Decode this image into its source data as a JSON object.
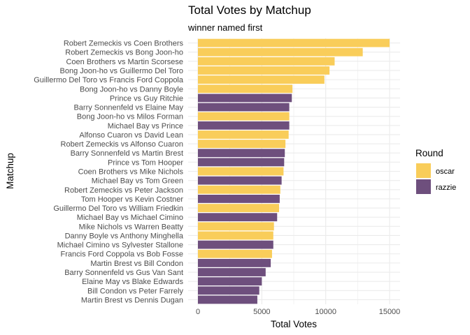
{
  "chart_data": {
    "type": "bar",
    "orientation": "horizontal",
    "title": "Total Votes by Matchup",
    "subtitle": "winner named first",
    "xlabel": "Total Votes",
    "ylabel": "Matchup",
    "xlim": [
      0,
      16000
    ],
    "x_ticks": [
      0,
      5000,
      10000,
      15000
    ],
    "x_tick_labels": [
      "0",
      "5000",
      "10000",
      "15000"
    ],
    "grid": true,
    "legend": {
      "title": "Round",
      "position": "right",
      "entries": [
        {
          "label": "oscar",
          "color": "#f9cd5a"
        },
        {
          "label": "razzie",
          "color": "#6e4f7d"
        }
      ]
    },
    "bars": [
      {
        "label": "Robert Zemeckis vs Coen Brothers",
        "value": 15000,
        "round": "oscar"
      },
      {
        "label": "Robert Zemeckis vs Bong Joon-ho",
        "value": 12900,
        "round": "oscar"
      },
      {
        "label": "Coen Brothers vs Martin Scorsese",
        "value": 10700,
        "round": "oscar"
      },
      {
        "label": "Bong Joon-ho vs Guillermo Del Toro",
        "value": 10300,
        "round": "oscar"
      },
      {
        "label": "Guillermo Del Toro vs Francis Ford Coppola",
        "value": 9900,
        "round": "oscar"
      },
      {
        "label": "Bong Joon-ho vs Danny Boyle",
        "value": 7400,
        "round": "oscar"
      },
      {
        "label": "Prince vs Guy Ritchie",
        "value": 7350,
        "round": "razzie"
      },
      {
        "label": "Barry Sonnenfeld vs Elaine May",
        "value": 7150,
        "round": "razzie"
      },
      {
        "label": "Bong Joon-ho vs Milos Forman",
        "value": 7150,
        "round": "oscar"
      },
      {
        "label": "Michael Bay vs Prince",
        "value": 7150,
        "round": "razzie"
      },
      {
        "label": "Alfonso Cuaron vs David Lean",
        "value": 7100,
        "round": "oscar"
      },
      {
        "label": "Robert Zemeckis vs Alfonso Cuaron",
        "value": 6850,
        "round": "oscar"
      },
      {
        "label": "Barry Sonnenfeld vs Martin Brest",
        "value": 6800,
        "round": "razzie"
      },
      {
        "label": "Prince vs Tom Hooper",
        "value": 6750,
        "round": "razzie"
      },
      {
        "label": "Coen Brothers vs Mike Nichols",
        "value": 6700,
        "round": "oscar"
      },
      {
        "label": "Michael Bay vs Tom Green",
        "value": 6550,
        "round": "razzie"
      },
      {
        "label": "Robert Zemeckis vs Peter Jackson",
        "value": 6450,
        "round": "oscar"
      },
      {
        "label": "Tom Hooper vs Kevin Costner",
        "value": 6400,
        "round": "razzie"
      },
      {
        "label": "Guillermo Del Toro vs William Friedkin",
        "value": 6350,
        "round": "oscar"
      },
      {
        "label": "Michael Bay vs Michael Cimino",
        "value": 6200,
        "round": "razzie"
      },
      {
        "label": "Mike Nichols vs Warren Beatty",
        "value": 5950,
        "round": "oscar"
      },
      {
        "label": "Danny Boyle vs Anthony Minghella",
        "value": 5900,
        "round": "oscar"
      },
      {
        "label": "Michael Cimino vs Sylvester Stallone",
        "value": 5900,
        "round": "razzie"
      },
      {
        "label": "Francis Ford Coppola vs Bob Fosse",
        "value": 5800,
        "round": "oscar"
      },
      {
        "label": "Martin Brest vs Bill Condon",
        "value": 5700,
        "round": "razzie"
      },
      {
        "label": "Barry Sonnenfeld vs Gus Van Sant",
        "value": 5300,
        "round": "razzie"
      },
      {
        "label": "Elaine May vs Blake Edwards",
        "value": 5000,
        "round": "razzie"
      },
      {
        "label": "Bill Condon vs Peter Farrely",
        "value": 4800,
        "round": "razzie"
      },
      {
        "label": "Martin Brest vs Dennis Dugan",
        "value": 4650,
        "round": "razzie"
      }
    ]
  }
}
